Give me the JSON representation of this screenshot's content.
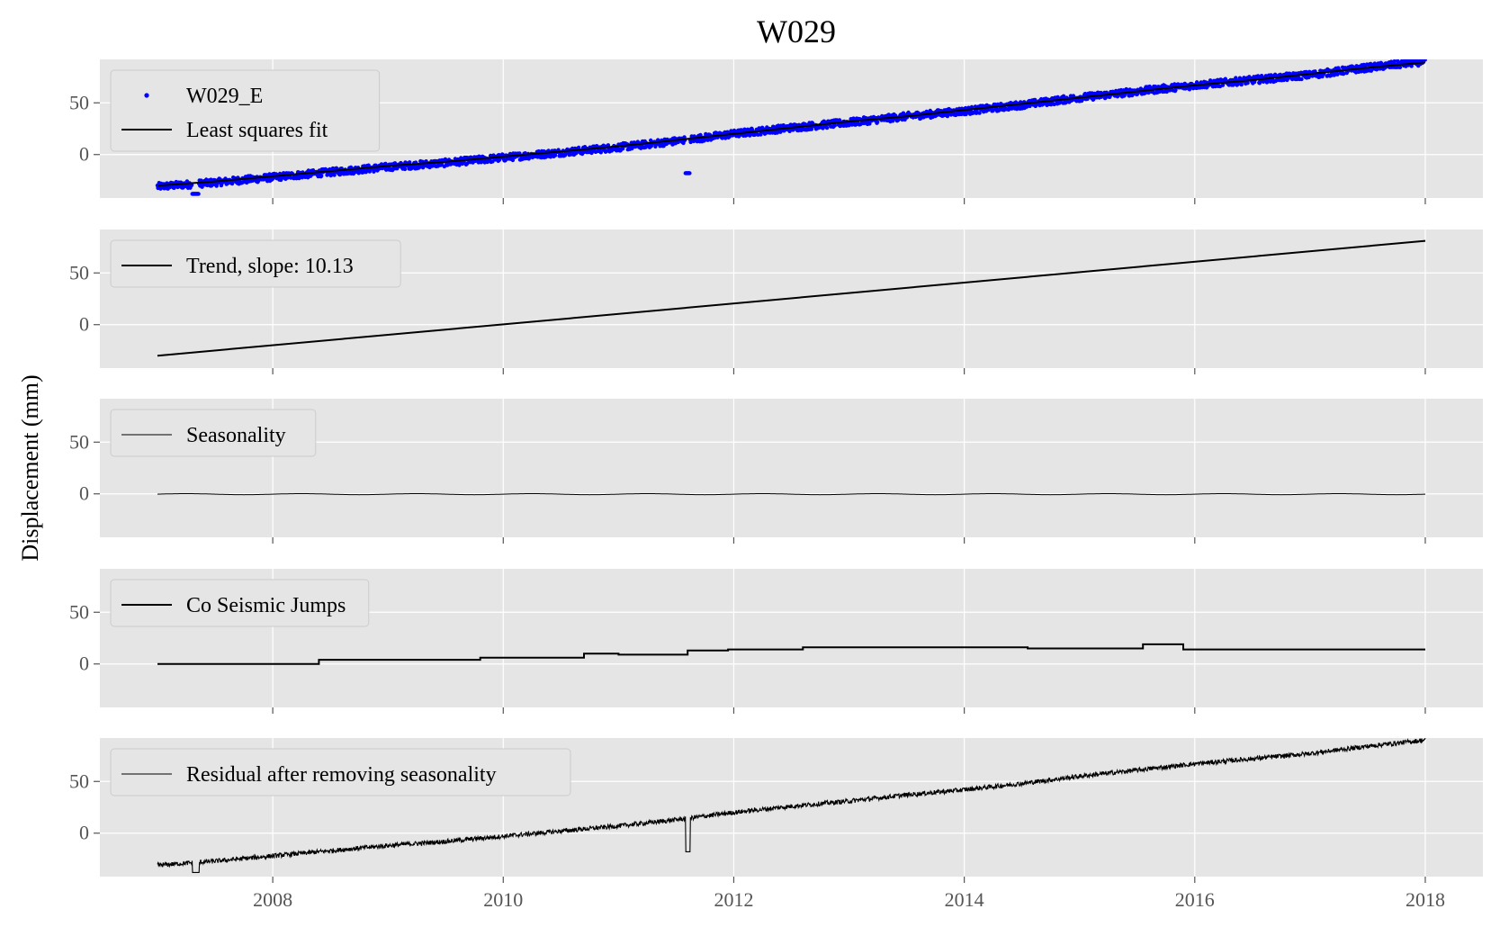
{
  "chart_data": {
    "type": "line",
    "title": "W029",
    "ylabel": "Displacement (mm)",
    "xlabel": "",
    "xlim": [
      2006.5,
      2018.5
    ],
    "x_ticks": [
      2008,
      2010,
      2012,
      2014,
      2016,
      2018
    ],
    "x_tick_labels": [
      "2008",
      "2010",
      "2012",
      "2014",
      "2016",
      "2018"
    ],
    "ylim": [
      -42,
      92
    ],
    "y_ticks": [
      0,
      50
    ],
    "y_tick_labels": [
      "0",
      "50"
    ],
    "grid": true,
    "legend_position": "upper-left",
    "colors": {
      "panel_bg": "#e5e5e5",
      "grid": "#ffffff",
      "observed": "#0000ff",
      "line": "#000000"
    },
    "panels": [
      {
        "legend": [
          "W029_E",
          "Least squares fit"
        ],
        "series": [
          {
            "name": "W029_E",
            "style": "scatter",
            "x": [
              2007.0,
              2007.5,
              2008.0,
              2008.5,
              2009.0,
              2009.5,
              2010.0,
              2010.5,
              2011.0,
              2011.5,
              2012.0,
              2012.5,
              2013.0,
              2013.5,
              2014.0,
              2014.5,
              2015.0,
              2015.5,
              2016.0,
              2016.5,
              2017.0,
              2017.5,
              2018.0
            ],
            "y": [
              -31,
              -27,
              -22,
              -17,
              -12,
              -8,
              -3,
              2,
              7,
              13,
              20,
              26,
              31,
              37,
              42,
              48,
              55,
              61,
              67,
              72,
              77,
              84,
              90
            ]
          },
          {
            "name": "Least squares fit",
            "style": "line",
            "x": [
              2007.0,
              2007.5,
              2008.0,
              2008.5,
              2009.0,
              2009.5,
              2010.0,
              2010.5,
              2011.0,
              2011.5,
              2012.0,
              2012.5,
              2013.0,
              2013.5,
              2014.0,
              2014.5,
              2015.0,
              2015.5,
              2016.0,
              2016.5,
              2017.0,
              2017.5,
              2018.0
            ],
            "y": [
              -30,
              -26,
              -21,
              -16,
              -11,
              -7,
              -2,
              3,
              8,
              14,
              20,
              26,
              32,
              37,
              43,
              49,
              55,
              61,
              67,
              72,
              78,
              84,
              89
            ]
          }
        ]
      },
      {
        "legend": [
          "Trend, slope: 10.13"
        ],
        "series": [
          {
            "name": "Trend, slope: 10.13",
            "style": "line",
            "x": [
              2007.0,
              2018.0
            ],
            "y": [
              -30,
              81
            ]
          }
        ]
      },
      {
        "legend": [
          "Seasonality"
        ],
        "series": [
          {
            "name": "Seasonality",
            "style": "line",
            "x": [
              2007.0,
              2007.5,
              2008.0,
              2008.5,
              2009.0,
              2009.5,
              2010.0,
              2010.5,
              2011.0,
              2011.5,
              2012.0,
              2012.5,
              2013.0,
              2013.5,
              2014.0,
              2014.5,
              2015.0,
              2015.5,
              2016.0,
              2016.5,
              2017.0,
              2017.5,
              2018.0
            ],
            "y": [
              0,
              -0.5,
              0,
              -0.5,
              0,
              -0.5,
              0,
              -0.5,
              0,
              -0.5,
              0,
              -0.5,
              0,
              -0.5,
              0,
              -0.5,
              0,
              -0.5,
              0,
              -0.5,
              0,
              -0.5,
              0
            ]
          }
        ]
      },
      {
        "legend": [
          "Co Seismic Jumps"
        ],
        "series": [
          {
            "name": "Co Seismic Jumps",
            "style": "step",
            "x": [
              2007.0,
              2008.4,
              2008.4,
              2009.8,
              2009.8,
              2010.7,
              2010.7,
              2011.0,
              2011.0,
              2011.6,
              2011.6,
              2011.95,
              2011.95,
              2012.6,
              2012.6,
              2014.55,
              2014.55,
              2015.55,
              2015.55,
              2015.9,
              2015.9,
              2018.0
            ],
            "y": [
              0,
              0,
              4,
              4,
              6,
              6,
              10,
              10,
              9,
              9,
              13,
              13,
              14,
              14,
              16,
              16,
              15,
              15,
              19,
              19,
              14,
              14
            ]
          }
        ]
      },
      {
        "legend": [
          "Residual after removing seasonality"
        ],
        "series": [
          {
            "name": "Residual after removing seasonality",
            "style": "line",
            "x": [
              2007.0,
              2007.5,
              2008.0,
              2008.5,
              2009.0,
              2009.5,
              2010.0,
              2010.5,
              2011.0,
              2011.5,
              2012.0,
              2012.5,
              2013.0,
              2013.5,
              2014.0,
              2014.5,
              2015.0,
              2015.5,
              2016.0,
              2016.5,
              2017.0,
              2017.5,
              2018.0
            ],
            "y": [
              -31,
              -27,
              -22,
              -17,
              -12,
              -8,
              -3,
              2,
              7,
              13,
              20,
              26,
              31,
              37,
              42,
              48,
              55,
              61,
              67,
              72,
              77,
              84,
              90
            ]
          }
        ]
      }
    ]
  }
}
